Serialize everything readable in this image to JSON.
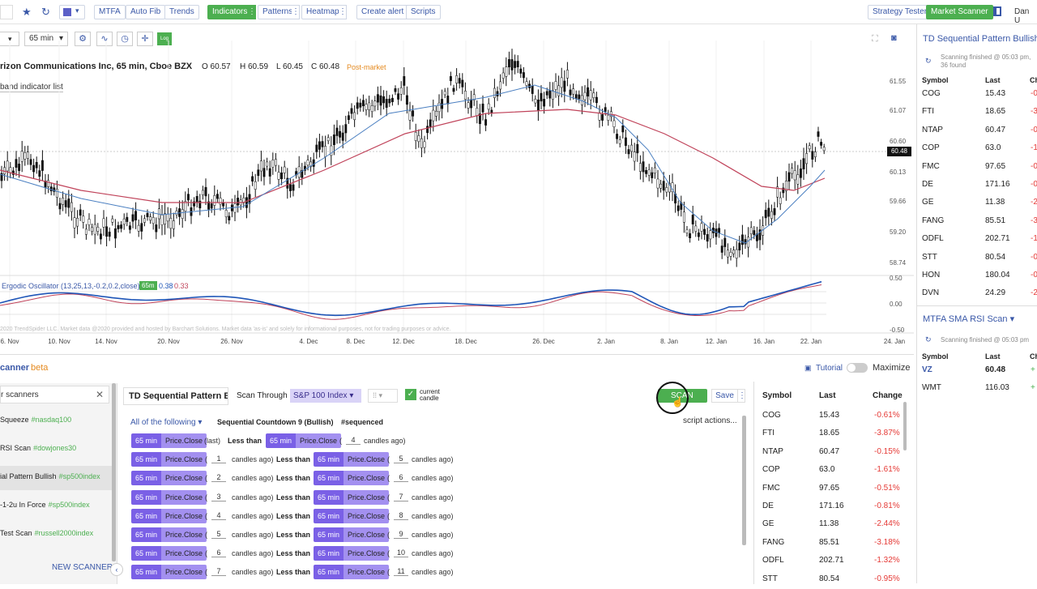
{
  "toolbar": {
    "buttons": [
      "MTFA",
      "Auto Fib",
      "Trends",
      "Indicators",
      "Patterns",
      "Heatmap",
      "Create alert",
      "Scripts"
    ],
    "strategy_tester": "Strategy Tester",
    "market_scanner": "Market Scanner",
    "user": "Dan U"
  },
  "chart": {
    "interval": "65 min",
    "title": "rizon Communications Inc, 65 min, Cboe BZX",
    "ohlc": {
      "o": "O 60.57",
      "h": "H 60.59",
      "l": "L 60.45",
      "c": "C 60.48"
    },
    "session": "Post-market",
    "expand_link": "band indicator list",
    "last_price": "60.48",
    "price_labels": [
      "61.55",
      "61.07",
      "60.60",
      "60.13",
      "59.66",
      "59.20",
      "58.74"
    ],
    "osc_labels": [
      "0.50",
      "0.00",
      "-0.50"
    ],
    "oscillator": {
      "name": "Ergodic Oscillator (13,25,13,-0.2,0.2,close)",
      "tf": "65m",
      "v1": "0.38",
      "v2": "0.33"
    },
    "copyright": "2020 TrendSpider LLC. Market data @2020 provided and hosted by Barchart Solutions. Market data 'as-is' and solely for informational purposes, not for trading purposes or advice.",
    "dates": [
      "6. Nov",
      "10. Nov",
      "14. Nov",
      "20. Nov",
      "26. Nov",
      "4. Dec",
      "8. Dec",
      "12. Dec",
      "18. Dec",
      "26. Dec",
      "2. Jan",
      "8. Jan",
      "12. Jan",
      "16. Jan",
      "22. Jan",
      "24. Jan"
    ]
  },
  "scanner": {
    "title": "canner",
    "beta": "beta",
    "tutorial": "Tutorial",
    "maximize": "Maximize",
    "search_placeholder": "r scanners",
    "list": [
      {
        "name": "Squeeze",
        "tag": "#nasdaq100"
      },
      {
        "name": "RSI Scan",
        "tag": "#dowjones30"
      },
      {
        "name": "ial Pattern Bullish",
        "tag": "#sp500index"
      },
      {
        "name": "-1-2u In Force",
        "tag": "#sp500index"
      },
      {
        "name": "Test Scan",
        "tag": "#russell2000index"
      }
    ],
    "new_scanner": "NEW SCANNER",
    "scan_name": "TD Sequential Pattern B",
    "scan_through": "Scan Through",
    "universe": "S&P 100 Index",
    "current_candle": "current candle",
    "scan_btn": "SCAN",
    "save_btn": "Save",
    "script_actions": "script actions...",
    "all_of": "All of the following",
    "rule_title": "Sequential Countdown 9 (Bullish)",
    "rule_tag": "#sequenced",
    "tf": "65 min",
    "src": "Price.Close",
    "last": "(last)",
    "less_than": "Less than",
    "candles_ago": "candles ago)",
    "rows": [
      {
        "l": "",
        "r": "4"
      },
      {
        "l": "1",
        "r": "5"
      },
      {
        "l": "2",
        "r": "6"
      },
      {
        "l": "3",
        "r": "7"
      },
      {
        "l": "4",
        "r": "8"
      },
      {
        "l": "5",
        "r": "9"
      },
      {
        "l": "6",
        "r": "10"
      },
      {
        "l": "7",
        "r": "11"
      }
    ],
    "results_head": {
      "symbol": "Symbol",
      "last": "Last",
      "change": "Change"
    },
    "results": [
      {
        "s": "COG",
        "l": "15.43",
        "c": "-0.61%"
      },
      {
        "s": "FTI",
        "l": "18.65",
        "c": "-3.87%"
      },
      {
        "s": "NTAP",
        "l": "60.47",
        "c": "-0.15%"
      },
      {
        "s": "COP",
        "l": "63.0",
        "c": "-1.61%"
      },
      {
        "s": "FMC",
        "l": "97.65",
        "c": "-0.51%"
      },
      {
        "s": "DE",
        "l": "171.16",
        "c": "-0.81%"
      },
      {
        "s": "GE",
        "l": "11.38",
        "c": "-2.44%"
      },
      {
        "s": "FANG",
        "l": "85.51",
        "c": "-3.18%"
      },
      {
        "s": "ODFL",
        "l": "202.71",
        "c": "-1.32%"
      },
      {
        "s": "STT",
        "l": "80.54",
        "c": "-0.95%"
      }
    ]
  },
  "sidebar": {
    "scan1": "TD Sequential Pattern Bullish",
    "status1": "Scanning finished @ 05:03 pm, 36 found",
    "head": {
      "symbol": "Symbol",
      "last": "Last",
      "ch": "Ch"
    },
    "rows1": [
      {
        "s": "COG",
        "l": "15.43",
        "c": "-0"
      },
      {
        "s": "FTI",
        "l": "18.65",
        "c": "-3"
      },
      {
        "s": "NTAP",
        "l": "60.47",
        "c": "-0"
      },
      {
        "s": "COP",
        "l": "63.0",
        "c": "-1"
      },
      {
        "s": "FMC",
        "l": "97.65",
        "c": "-0"
      },
      {
        "s": "DE",
        "l": "171.16",
        "c": "-0"
      },
      {
        "s": "GE",
        "l": "11.38",
        "c": "-2"
      },
      {
        "s": "FANG",
        "l": "85.51",
        "c": "-3"
      },
      {
        "s": "ODFL",
        "l": "202.71",
        "c": "-1"
      },
      {
        "s": "STT",
        "l": "80.54",
        "c": "-0"
      },
      {
        "s": "HON",
        "l": "180.04",
        "c": "-0"
      },
      {
        "s": "DVN",
        "l": "24.29",
        "c": "-2"
      }
    ],
    "scan2": "MTFA SMA RSI Scan",
    "status2": "Scanning finished @ 05:03 pm",
    "rows2": [
      {
        "s": "VZ",
        "l": "60.48",
        "c": "+"
      },
      {
        "s": "WMT",
        "l": "116.03",
        "c": "+"
      }
    ]
  },
  "colors": {
    "accent": "#4caf50",
    "chip": "#7a60e6",
    "neg": "#e53935",
    "link": "#3a58a8",
    "ma_red": "#c0435a",
    "ma_blue": "#4a7fc1"
  }
}
